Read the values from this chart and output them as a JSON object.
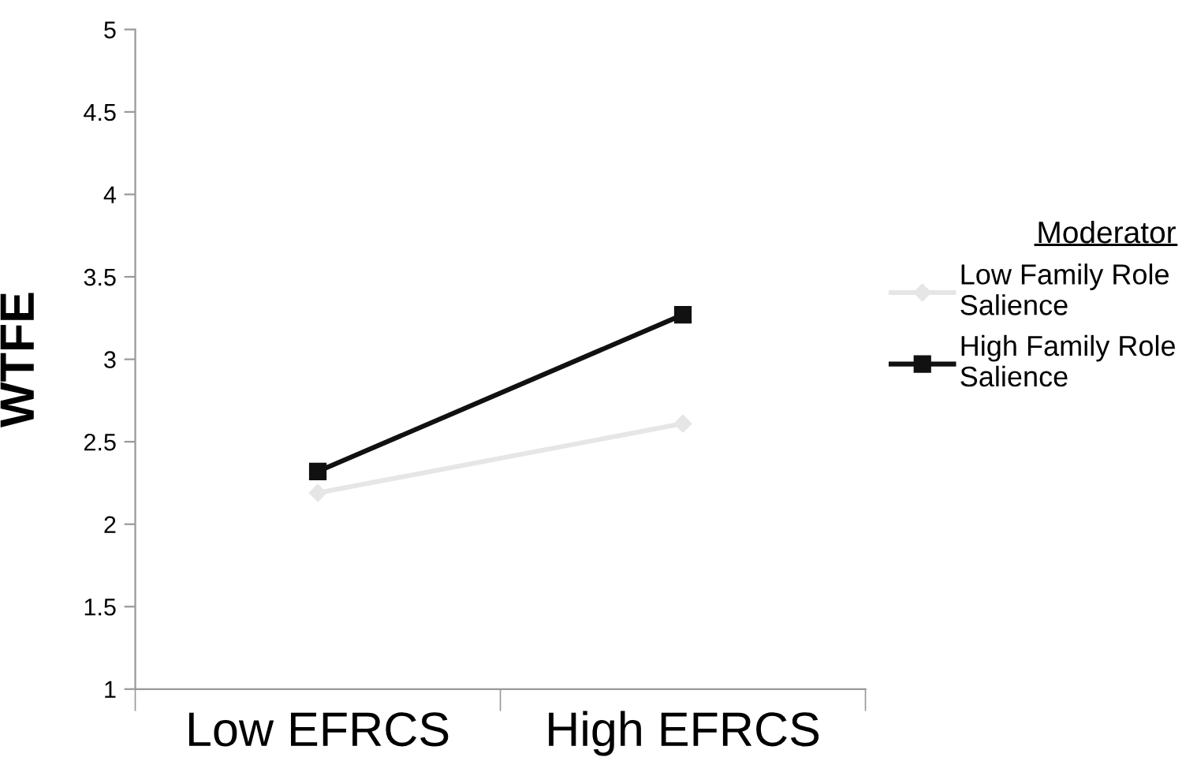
{
  "chart_data": {
    "type": "line",
    "ylabel": "WTFE",
    "legend_title": "Moderator",
    "categories": [
      "Low EFRCS",
      "High EFRCS"
    ],
    "series": [
      {
        "name": "Low Family Role Salience",
        "color": "#e6e6e6",
        "marker": "diamond",
        "values": [
          2.19,
          2.61
        ]
      },
      {
        "name": "High Family Role Salience",
        "color": "#111111",
        "marker": "square",
        "values": [
          2.32,
          3.27
        ]
      }
    ],
    "ylim": [
      1,
      5
    ],
    "yticks": [
      1,
      1.5,
      2,
      2.5,
      3,
      3.5,
      4,
      4.5,
      5
    ],
    "grid": false,
    "legend": "right"
  }
}
